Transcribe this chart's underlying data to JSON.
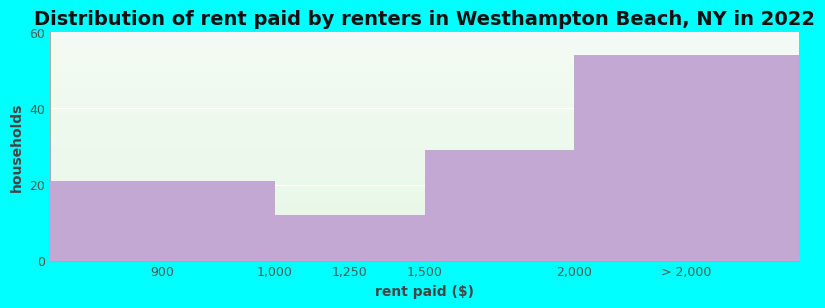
{
  "title": "Distribution of rent paid by renters in Westhampton Beach, NY in 2022",
  "xlabel": "rent paid ($)",
  "ylabel": "households",
  "background_color": "#00FFFF",
  "bar_color": "#C4A8D4",
  "ylim": [
    0,
    60
  ],
  "yticks": [
    0,
    20,
    40,
    60
  ],
  "bar_labels": [
    "900",
    "1,000",
    "1,250",
    "1,500",
    "2,000",
    "> 2,000"
  ],
  "bar_heights": [
    21,
    12,
    12,
    29,
    54
  ],
  "bar_lefts": [
    0.0,
    3.0,
    4.0,
    5.0,
    7.0
  ],
  "bar_rights": [
    3.0,
    4.0,
    5.0,
    7.0,
    10.0
  ],
  "xtick_positions": [
    1.5,
    3.0,
    4.0,
    5.0,
    7.0,
    8.5
  ],
  "title_fontsize": 14,
  "axis_label_fontsize": 10,
  "tick_fontsize": 9,
  "grid_color": "#e8e8e8",
  "plot_bg_top": "#f4fbf4",
  "plot_bg_bottom": "#e6f7e6"
}
